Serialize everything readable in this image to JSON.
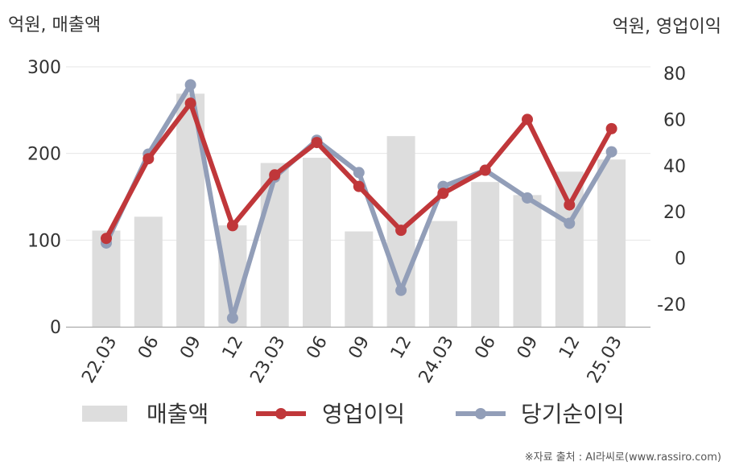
{
  "chart_data": {
    "type": "bar+line",
    "categories": [
      "22.03",
      "06",
      "09",
      "12",
      "23.03",
      "06",
      "09",
      "12",
      "24.03",
      "06",
      "09",
      "12",
      "25.03"
    ],
    "left_axis": {
      "label": "억원, 매출액",
      "range": [
        0,
        300
      ],
      "ticks": [
        0,
        100,
        200,
        300
      ]
    },
    "right_axis": {
      "label": "억원, 영업이익",
      "range": [
        -30,
        85
      ],
      "ticks": [
        -20,
        0,
        20,
        40,
        60,
        80
      ]
    },
    "grid": true,
    "legend_position": "bottom",
    "series": [
      {
        "name": "매출액",
        "kind": "bar",
        "axis": "left",
        "color": "#dddddd",
        "values": [
          111,
          127,
          269,
          117,
          189,
          195,
          110,
          220,
          122,
          167,
          152,
          179,
          193
        ]
      },
      {
        "name": "영업이익",
        "kind": "line",
        "axis": "right",
        "color": "#c0373a",
        "values": [
          8.5,
          43,
          67,
          14,
          36,
          50,
          31,
          12,
          28,
          38,
          60,
          23,
          56
        ]
      },
      {
        "name": "당기순이익",
        "kind": "line",
        "axis": "right",
        "color": "#929eb8",
        "values": [
          6.5,
          45,
          75,
          -26,
          35,
          51,
          37,
          -14,
          31,
          38,
          26,
          15,
          46
        ]
      }
    ],
    "source": "※자료 출처 : AI라씨로(www.rassiro.com)"
  }
}
